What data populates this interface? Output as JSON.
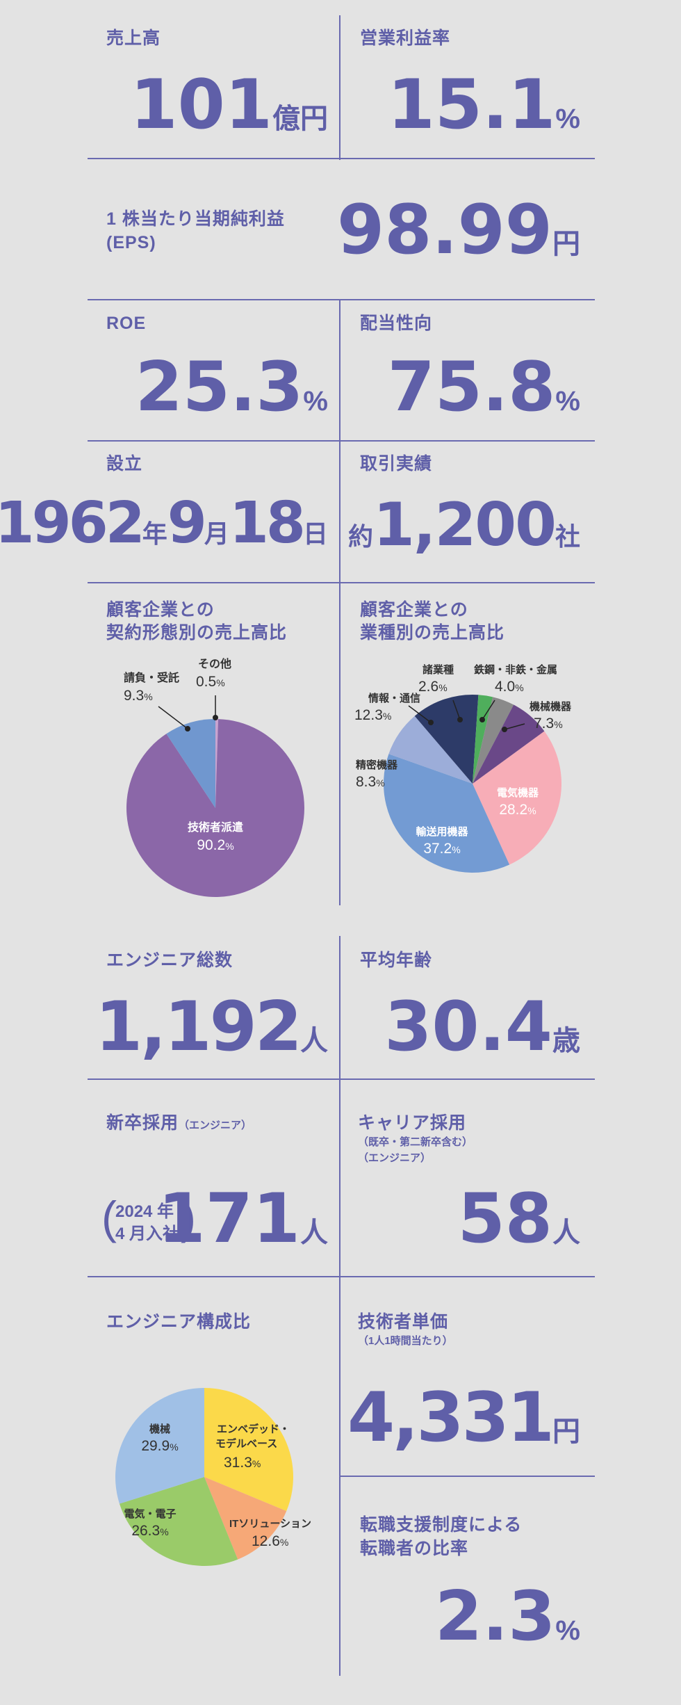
{
  "stats": {
    "sales": {
      "label": "売上高",
      "value": "101",
      "unit": "億円"
    },
    "margin": {
      "label": "営業利益率",
      "value": "15.1",
      "unit": "%"
    },
    "eps": {
      "label_line1": "1 株当たり当期純利益",
      "label_line2": "(EPS)",
      "value": "98.99",
      "unit": "円"
    },
    "roe": {
      "label": "ROE",
      "value": "25.3",
      "unit": "%"
    },
    "payout": {
      "label": "配当性向",
      "value": "75.8",
      "unit": "%"
    },
    "founded": {
      "label": "設立",
      "year": "1962",
      "year_unit": "年",
      "month": "9",
      "month_unit": "月",
      "day": "18",
      "day_unit": "日"
    },
    "clients": {
      "label": "取引実績",
      "prefix": "約",
      "value": "1,200",
      "unit": "社"
    },
    "engineers": {
      "label": "エンジニア総数",
      "value": "1,192",
      "unit": "人"
    },
    "avg_age": {
      "label": "平均年齢",
      "value": "30.4",
      "unit": "歳"
    },
    "new_grad": {
      "label": "新卒採用",
      "label_note": "（エンジニア）",
      "paren_line1": "2024 年",
      "paren_line2": "4 月入社",
      "value": "171",
      "unit": "人"
    },
    "career": {
      "label": "キャリア採用",
      "note_line1": "（既卒・第二新卒含む）",
      "note_line2": "（エンジニア）",
      "value": "58",
      "unit": "人"
    },
    "unit_price": {
      "label": "技術者単価",
      "note": "（1人1時間当たり）",
      "value": "4,331",
      "unit": "円"
    },
    "transfer": {
      "label_line1": "転職支援制度による",
      "label_line2": "転職者の比率",
      "value": "2.3",
      "unit": "%"
    },
    "composition": {
      "label": "エンジニア構成比"
    }
  },
  "chart_data": [
    {
      "type": "pie",
      "title": "顧客企業との契約形態別の売上高比",
      "title_line1": "顧客企業との",
      "title_line2": "契約形態別の売上高比",
      "slices": [
        {
          "name": "技術者派遣",
          "value": 90.2,
          "color": "#8b67a8"
        },
        {
          "name": "請負・受託",
          "value": 9.3,
          "color": "#7097cf"
        },
        {
          "name": "その他",
          "value": 0.5,
          "color": "#c9a3cf"
        }
      ]
    },
    {
      "type": "pie",
      "title": "顧客企業との業種別の売上高比",
      "title_line1": "顧客企業との",
      "title_line2": "業種別の売上高比",
      "slices": [
        {
          "name": "電気機器",
          "value": 28.2,
          "color": "#f7adb7"
        },
        {
          "name": "輸送用機器",
          "value": 37.2,
          "color": "#739bd3"
        },
        {
          "name": "精密機器",
          "value": 8.3,
          "color": "#9cadd9"
        },
        {
          "name": "情報・通信",
          "value": 12.3,
          "color": "#2d3b68"
        },
        {
          "name": "諸業種",
          "value": 2.6,
          "color": "#4fae5c"
        },
        {
          "name": "鉄鋼・非鉄・金属",
          "value": 4.0,
          "color": "#8a8a8a"
        },
        {
          "name": "機械機器",
          "value": 7.3,
          "color": "#6a4888"
        }
      ]
    },
    {
      "type": "pie",
      "title": "エンジニア構成比",
      "slices": [
        {
          "name": "エンベデッド・モデルベース",
          "value": 31.3,
          "color": "#fbd94a"
        },
        {
          "name": "ITソリューション",
          "value": 12.6,
          "color": "#f6a877"
        },
        {
          "name": "電気・電子",
          "value": 26.3,
          "color": "#9acb69"
        },
        {
          "name": "機械",
          "value": 29.9,
          "color": "#a0c0e6"
        }
      ]
    }
  ],
  "pie_text": {
    "c1": {
      "main_name": "技術者派遣",
      "main_val": "90.2",
      "ukeoi_name": "請負・受託",
      "ukeoi_val": "9.3",
      "other_name": "その他",
      "other_val": "0.5",
      "pct": "%"
    },
    "c2": {
      "denki_name": "電気機器",
      "denki_val": "28.2",
      "yuso_name": "輸送用機器",
      "yuso_val": "37.2",
      "seimitsu_name": "精密機器",
      "seimitsu_val": "8.3",
      "joho_name": "情報・通信",
      "joho_val": "12.3",
      "sho_name": "諸業種",
      "sho_val": "2.6",
      "tekko_name": "鉄鋼・非鉄・金属",
      "tekko_val": "4.0",
      "kikai_name": "機械機器",
      "kikai_val": "7.3",
      "pct": "%"
    },
    "c3": {
      "emb_name1": "エンベデッド・",
      "emb_name2": "モデルベース",
      "emb_val": "31.3",
      "it_name": "ITソリューション",
      "it_val": "12.6",
      "elec_name": "電気・電子",
      "elec_val": "26.3",
      "mech_name": "機械",
      "mech_val": "29.9",
      "pct": "%"
    }
  }
}
